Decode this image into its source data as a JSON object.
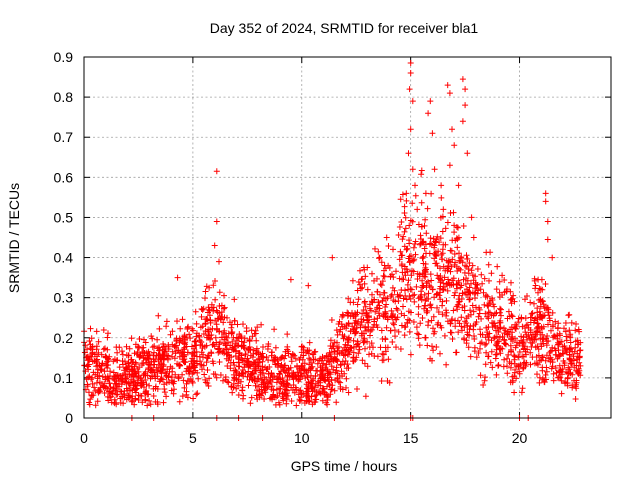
{
  "chart_data": {
    "type": "scatter",
    "title": "Day 352 of 2024, SRMTID for receiver bla1",
    "xlabel": "GPS time / hours",
    "ylabel": "SRMTID / TECUs",
    "xlim": [
      0,
      24.2
    ],
    "ylim": [
      0,
      0.9
    ],
    "x_ticks": [
      0,
      5,
      10,
      15,
      20
    ],
    "x_tick_labels": [
      "0",
      "5",
      "10",
      "15",
      "20"
    ],
    "y_ticks": [
      0,
      0.1,
      0.2,
      0.3,
      0.4,
      0.5,
      0.6,
      0.7,
      0.8,
      0.9
    ],
    "y_tick_labels": [
      "0",
      "0.1",
      "0.2",
      "0.3",
      "0.4",
      "0.5",
      "0.6",
      "0.7",
      "0.8",
      "0.9"
    ],
    "grid": true,
    "marker": "+",
    "color": "#ff0000",
    "profile": [
      [
        0.0,
        0.13
      ],
      [
        1.0,
        0.11
      ],
      [
        2.0,
        0.1
      ],
      [
        3.0,
        0.12
      ],
      [
        4.0,
        0.14
      ],
      [
        5.0,
        0.15
      ],
      [
        6.0,
        0.22
      ],
      [
        7.0,
        0.15
      ],
      [
        8.0,
        0.12
      ],
      [
        9.0,
        0.11
      ],
      [
        10.0,
        0.1
      ],
      [
        11.0,
        0.1
      ],
      [
        12.0,
        0.18
      ],
      [
        13.0,
        0.24
      ],
      [
        14.0,
        0.28
      ],
      [
        15.0,
        0.38
      ],
      [
        16.0,
        0.36
      ],
      [
        17.0,
        0.34
      ],
      [
        18.0,
        0.28
      ],
      [
        19.0,
        0.22
      ],
      [
        20.0,
        0.18
      ],
      [
        21.0,
        0.22
      ],
      [
        22.0,
        0.15
      ],
      [
        22.8,
        0.14
      ]
    ],
    "highlights": [
      [
        6.1,
        0.615
      ],
      [
        6.1,
        0.49
      ],
      [
        6.0,
        0.43
      ],
      [
        6.2,
        0.39
      ],
      [
        15.0,
        0.885
      ],
      [
        15.0,
        0.86
      ],
      [
        14.95,
        0.82
      ],
      [
        15.1,
        0.79
      ],
      [
        15.0,
        0.72
      ],
      [
        14.9,
        0.66
      ],
      [
        15.1,
        0.62
      ],
      [
        15.2,
        0.58
      ],
      [
        15.3,
        0.52
      ],
      [
        14.8,
        0.56
      ],
      [
        15.9,
        0.79
      ],
      [
        15.8,
        0.76
      ],
      [
        16.0,
        0.71
      ],
      [
        16.1,
        0.62
      ],
      [
        15.7,
        0.56
      ],
      [
        16.7,
        0.83
      ],
      [
        16.8,
        0.81
      ],
      [
        16.9,
        0.72
      ],
      [
        17.0,
        0.68
      ],
      [
        16.8,
        0.63
      ],
      [
        17.4,
        0.845
      ],
      [
        17.5,
        0.82
      ],
      [
        17.5,
        0.78
      ],
      [
        17.4,
        0.74
      ],
      [
        17.6,
        0.66
      ],
      [
        16.4,
        0.58
      ],
      [
        16.5,
        0.52
      ],
      [
        17.2,
        0.58
      ],
      [
        17.8,
        0.5
      ],
      [
        17.9,
        0.45
      ],
      [
        21.2,
        0.56
      ],
      [
        21.2,
        0.54
      ],
      [
        21.3,
        0.49
      ],
      [
        21.3,
        0.445
      ],
      [
        21.5,
        0.4
      ],
      [
        4.3,
        0.35
      ],
      [
        9.5,
        0.345
      ],
      [
        10.3,
        0.33
      ],
      [
        11.4,
        0.4
      ],
      [
        13.9,
        0.45
      ]
    ],
    "zero_marks": [
      2.2,
      3.2,
      6.1,
      7.1,
      8.2,
      11.5,
      15.0,
      15.1,
      20.0,
      20.4
    ]
  }
}
